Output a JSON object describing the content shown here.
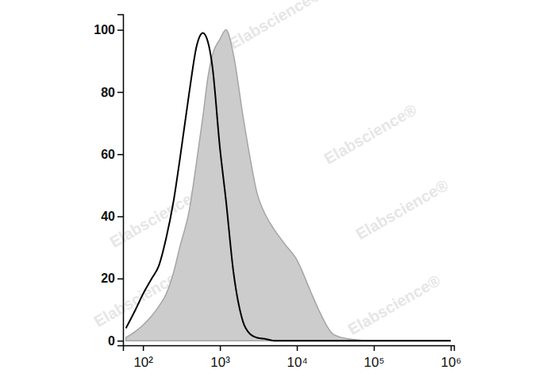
{
  "chart_data": {
    "type": "area",
    "log": "x",
    "xlim": [
      55,
      1100000
    ],
    "ylim": [
      -1.5,
      105
    ],
    "xticks": [
      {
        "value": 100,
        "label": "10²"
      },
      {
        "value": 1000,
        "label": "10³"
      },
      {
        "value": 10000,
        "label": "10⁴"
      },
      {
        "value": 100000,
        "label": "10⁵"
      },
      {
        "value": 1000000,
        "label": "10⁶"
      }
    ],
    "yticks": [
      0,
      20,
      40,
      60,
      80,
      100
    ],
    "x": [
      60,
      80,
      100,
      130,
      160,
      200,
      250,
      300,
      400,
      500,
      600,
      700,
      800,
      1000,
      1200,
      1500,
      2000,
      2500,
      3000,
      4000,
      5000,
      7000,
      10000,
      15000,
      20000,
      30000,
      50000,
      100000,
      1000000
    ],
    "series": [
      {
        "type": "area",
        "color": "#cccccc",
        "values": [
          1,
          3,
          5,
          8,
          11,
          15,
          22,
          30,
          42,
          58,
          72,
          85,
          92,
          97,
          100,
          92,
          72,
          58,
          48,
          40,
          36,
          31,
          26,
          16,
          9,
          2,
          0.5,
          0,
          0
        ]
      },
      {
        "type": "line",
        "color": "#000000",
        "values": [
          4,
          10,
          15,
          20,
          24,
          33,
          45,
          58,
          80,
          95,
          99,
          96,
          88,
          62,
          45,
          22,
          6,
          2,
          1,
          0.5,
          0,
          0,
          0,
          0,
          0,
          0,
          0,
          0,
          0
        ]
      }
    ],
    "annotations": [
      "Elabscience®",
      "Elabscience®",
      "Elabscience®",
      "Elabscience®",
      "Elabscience®",
      "Elabscience®",
      "Elabscience®"
    ]
  }
}
